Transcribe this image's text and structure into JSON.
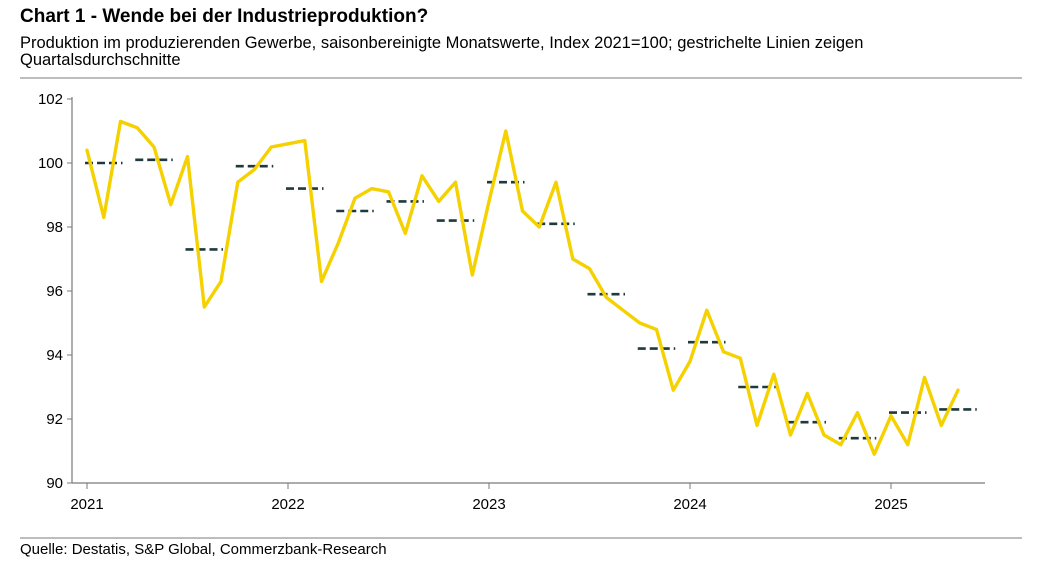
{
  "header": {
    "title": "Chart 1 - Wende bei der Industrieproduktion?",
    "subtitle": "Produktion im produzierenden Gewerbe, saisonbereinigte Monatswerte, Index 2021=100; gestrichelte Linien zeigen Quartalsdurchschnitte"
  },
  "footer": {
    "source": "Quelle: Destatis, S&P Global, Commerzbank-Research"
  },
  "colors": {
    "monthly_line": "#f5d100",
    "quarter_dash": "#1f3a3d",
    "axis": "#7a7a7a"
  },
  "chart_data": {
    "type": "line",
    "title": "Chart 1 - Wende bei der Industrieproduktion?",
    "xlabel": "",
    "ylabel": "",
    "ylim": [
      90,
      102
    ],
    "yticks": [
      90,
      92,
      94,
      96,
      98,
      100,
      102
    ],
    "xticks": [
      "2021",
      "2022",
      "2023",
      "2024",
      "2025"
    ],
    "x_start": "2021-01",
    "series": [
      {
        "name": "Monatswerte",
        "style": "solid",
        "values": [
          100.4,
          98.3,
          101.3,
          101.1,
          100.5,
          98.7,
          100.2,
          95.5,
          96.3,
          99.4,
          99.8,
          100.5,
          100.6,
          100.7,
          96.3,
          97.5,
          98.9,
          99.2,
          99.1,
          97.8,
          99.6,
          98.8,
          99.4,
          96.5,
          98.8,
          101.0,
          98.5,
          98.0,
          99.4,
          97.0,
          96.7,
          95.8,
          95.4,
          95.0,
          94.8,
          92.9,
          93.8,
          95.4,
          94.1,
          93.9,
          91.8,
          93.4,
          91.5,
          92.8,
          91.5,
          91.2,
          92.2,
          90.9,
          92.1,
          91.2,
          93.3,
          91.8,
          92.9
        ]
      },
      {
        "name": "Quartalsdurchschnitte",
        "style": "dashed",
        "values": [
          100.0,
          100.1,
          97.3,
          99.9,
          99.2,
          98.5,
          98.8,
          98.2,
          99.4,
          98.1,
          95.9,
          94.2,
          94.4,
          93.0,
          91.9,
          91.4,
          92.2,
          92.3
        ]
      }
    ]
  }
}
